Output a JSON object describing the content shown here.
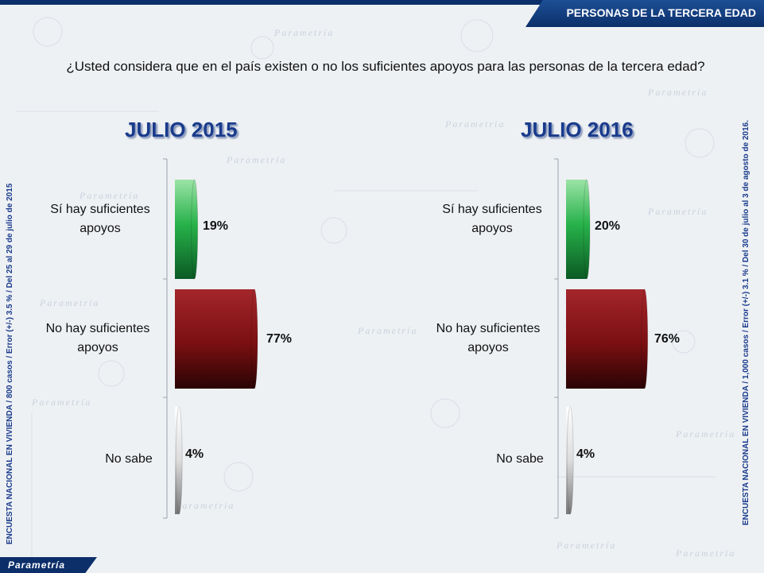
{
  "header": {
    "title": "PERSONAS DE LA TERCERA EDAD"
  },
  "question": "¿Usted considera que en el país existen o no los suficientes apoyos para las personas de la tercera edad?",
  "side_notes": {
    "left": "ENCUESTA NACIONAL EN VIVIENDA / 800 casos / Error (+/-) 3.5 % / Del 25 al 29 de julio de 2015",
    "right": "ENCUESTA NACIONAL EN VIVIENDA / 1,000 casos / Error (+/-) 3.1 % / Del 30 de julio al 3 de agosto de 2016."
  },
  "footer": {
    "logo": "Parametría"
  },
  "watermark": "Parametría",
  "colors": {
    "yes": "#21a845",
    "no": "#7a0f12",
    "unknown": "#e8e8e8",
    "title": "#1a3b8c",
    "brand": "#0c2f6a"
  },
  "chart_data": [
    {
      "type": "bar",
      "orientation": "horizontal",
      "title": "JULIO 2015",
      "categories": [
        "Sí hay suficientes apoyos",
        "No hay suficientes apoyos",
        "No sabe"
      ],
      "values": [
        19,
        77,
        4
      ],
      "value_labels": [
        "19%",
        "77%",
        "4%"
      ],
      "unit": "%"
    },
    {
      "type": "bar",
      "orientation": "horizontal",
      "title": "JULIO 2016",
      "categories": [
        "Sí hay suficientes apoyos",
        "No hay suficientes apoyos",
        "No sabe"
      ],
      "values": [
        20,
        76,
        4
      ],
      "value_labels": [
        "20%",
        "76%",
        "4%"
      ],
      "unit": "%"
    }
  ]
}
